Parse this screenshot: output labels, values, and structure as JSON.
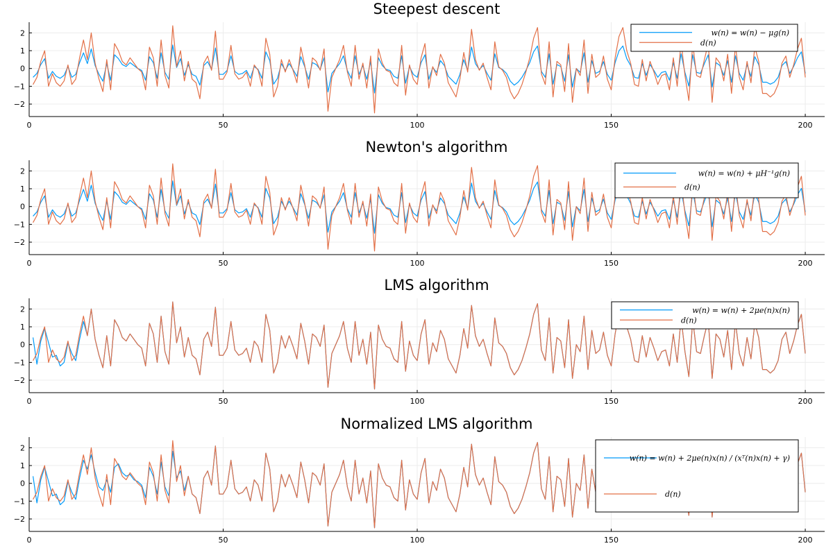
{
  "chart_data": [
    {
      "type": "line",
      "title": "Steepest descent",
      "xlim": [
        0,
        205
      ],
      "ylim": [
        -2.7,
        2.6
      ],
      "xticks": [
        0,
        50,
        100,
        150,
        200
      ],
      "yticks": [
        -2,
        -1,
        0,
        1,
        2
      ],
      "grid": true,
      "legend_position": "top-right",
      "series": [
        {
          "name": "w(n) = w(n) − μg(n)",
          "color": "#009af9",
          "mode": "shrunk",
          "factor": 0.55
        },
        {
          "name": "d(n)",
          "color": "#e26f46",
          "mode": "signal"
        }
      ]
    },
    {
      "type": "line",
      "title": "Newton's algorithm",
      "xlim": [
        0,
        205
      ],
      "ylim": [
        -2.7,
        2.6
      ],
      "xticks": [
        0,
        50,
        100,
        150,
        200
      ],
      "yticks": [
        -2,
        -1,
        0,
        1,
        2
      ],
      "grid": true,
      "legend_position": "top-right",
      "series": [
        {
          "name": "w(n) = w(n) + μH⁻¹g(n)",
          "color": "#009af9",
          "mode": "shrunk",
          "factor": 0.6
        },
        {
          "name": "d(n)",
          "color": "#e26f46",
          "mode": "signal"
        }
      ]
    },
    {
      "type": "line",
      "title": "LMS algorithm",
      "xlim": [
        0,
        205
      ],
      "ylim": [
        -2.7,
        2.6
      ],
      "xticks": [
        0,
        50,
        100,
        150,
        200
      ],
      "yticks": [
        -2,
        -1,
        0,
        1,
        2
      ],
      "grid": true,
      "legend_position": "top-right",
      "series": [
        {
          "name": "w(n) = w(n) + 2μe(n)x(n)",
          "color": "#009af9",
          "mode": "converge",
          "converge_after": 14
        },
        {
          "name": "d(n)",
          "color": "#e26f46",
          "mode": "signal"
        }
      ]
    },
    {
      "type": "line",
      "title": "Normalized LMS algorithm",
      "xlim": [
        0,
        205
      ],
      "ylim": [
        -2.7,
        2.6
      ],
      "xticks": [
        0,
        50,
        100,
        150,
        200
      ],
      "yticks": [
        -2,
        -1,
        0,
        1,
        2
      ],
      "grid": true,
      "legend_position": "top-right",
      "series": [
        {
          "name": "w(n) = w(n) + 2μe(n)x(n) / (xᵀ(n)x(n) + γ)",
          "color": "#009af9",
          "mode": "converge",
          "converge_after": 40
        },
        {
          "name": "d(n)",
          "color": "#e26f46",
          "mode": "signal"
        }
      ]
    }
  ],
  "signal": {
    "x_start": 1,
    "x_end": 200,
    "d": [
      -0.9,
      -0.5,
      0.4,
      1.0,
      -1.0,
      -0.3,
      -0.8,
      -1.0,
      -0.7,
      0.2,
      -0.9,
      -0.6,
      0.6,
      1.6,
      0.5,
      2.0,
      0.3,
      -0.6,
      -1.3,
      0.5,
      -1.2,
      1.4,
      1.0,
      0.4,
      0.2,
      0.6,
      0.3,
      0.0,
      -0.2,
      -1.2,
      1.2,
      0.6,
      -1.0,
      1.6,
      -0.4,
      -1.1,
      2.4,
      0.1,
      1.0,
      -0.7,
      0.4,
      -0.6,
      -0.8,
      -1.7,
      0.3,
      0.7,
      -0.1,
      2.1,
      -0.6,
      -0.6,
      -0.2,
      1.3,
      -0.3,
      -0.6,
      -0.5,
      -0.2,
      -1.0,
      0.2,
      -0.1,
      -1.0,
      1.7,
      0.8,
      -1.6,
      -1.0,
      0.5,
      -0.2,
      0.5,
      -0.1,
      -0.8,
      1.2,
      0.2,
      -1.1,
      0.6,
      0.4,
      -0.1,
      1.1,
      -2.4,
      -0.5,
      0.0,
      0.5,
      1.3,
      -0.2,
      -1.0,
      1.3,
      -0.6,
      0.3,
      -1.1,
      0.7,
      -2.5,
      1.1,
      0.3,
      -0.1,
      -0.2,
      -0.8,
      -1.0,
      1.3,
      -1.5,
      0.2,
      -0.6,
      -0.9,
      0.6,
      1.4,
      -1.1,
      0.1,
      -0.4,
      0.8,
      0.3,
      -0.8,
      -1.2,
      -1.6,
      -0.6,
      0.9,
      -0.2,
      2.2,
      0.5,
      -0.1,
      0.3,
      -0.5,
      -1.2,
      1.5,
      0.1,
      -0.1,
      -0.5,
      -1.3,
      -1.7,
      -1.4,
      -0.9,
      -0.2,
      0.6,
      1.7,
      2.3,
      -0.3,
      -0.9,
      1.5,
      -1.6,
      0.4,
      0.2,
      -1.3,
      1.4,
      -1.9,
      0.0,
      -0.4,
      1.6,
      -1.4,
      0.8,
      -0.5,
      -0.3,
      0.7,
      -0.6,
      -1.2,
      0.6,
      1.8,
      2.3,
      1.0,
      0.3,
      -0.9,
      -1.0,
      0.5,
      -0.7,
      0.4,
      -0.2,
      -0.9,
      -0.4,
      -0.3,
      -1.2,
      0.6,
      -1.0,
      1.5,
      -0.4,
      -1.8,
      1.4,
      -0.4,
      -0.5,
      0.5,
      1.4,
      -1.9,
      0.6,
      0.3,
      -0.7,
      0.8,
      -1.4,
      1.3,
      -0.5,
      -1.2,
      0.4,
      -0.8,
      1.2,
      0.4,
      -1.4,
      -1.4,
      -1.6,
      -1.4,
      -0.9,
      0.3,
      0.7,
      -0.5,
      0.2,
      1.1,
      1.7,
      -0.5
    ],
    "w_initial": [
      0.4,
      -1.1,
      0.2,
      0.9,
      0.1,
      -0.7,
      -0.6,
      -1.2,
      -1.0,
      0.1,
      -0.5,
      -0.9,
      0.3,
      1.3,
      0.8,
      1.6,
      0.6,
      -0.2,
      -0.4,
      0.2,
      -0.5,
      0.9,
      1.1,
      0.6,
      0.4,
      0.5,
      0.2,
      0.1,
      -0.1,
      -0.8,
      0.9,
      0.4,
      -0.6,
      1.2,
      -0.2,
      -0.7,
      1.8,
      0.3,
      0.7,
      -0.4
    ]
  }
}
